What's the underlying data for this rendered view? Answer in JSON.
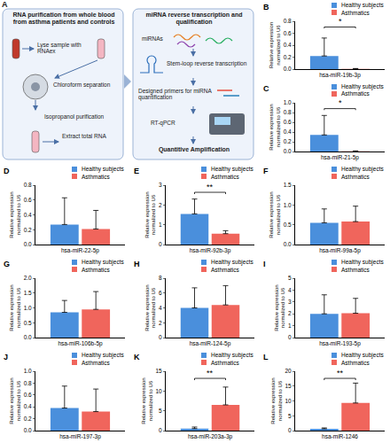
{
  "diagram": {
    "panel": "A",
    "left": {
      "title": "RNA purification from whole blood from asthma patients and controls",
      "steps": [
        "Lyse sample with RNAex",
        "Chloroform separation",
        "Isopropanol purification",
        "Extract total RNA"
      ]
    },
    "right": {
      "title": "miRNA reverse transcription and qualification",
      "steps": [
        "miRNAs",
        "Stem-loop reverse transcription",
        "Designed primers for miRNA quantification",
        "RT-qPCR",
        "Quantitive Amplification"
      ]
    }
  },
  "chart_data": [
    {
      "type": "bar",
      "panel": "B",
      "ylabel": "Relative expression normalized to U6",
      "categories": [
        "hsa-miR-19b-3p"
      ],
      "series": [
        {
          "name": "Healthy subjects",
          "color": "#4a8fdc",
          "values": [
            0.22
          ],
          "error": [
            0.3
          ]
        },
        {
          "name": "Asthmatics",
          "color": "#f0655c",
          "values": [
            0.005
          ],
          "error": [
            0.005
          ]
        }
      ],
      "ylim": [
        0,
        0.8
      ],
      "yticks": [
        {
          "value": 0,
          "label": "0.0"
        },
        0.2,
        0.4,
        0.6,
        0.8
      ],
      "grid": false,
      "annotations": [
        "*"
      ]
    },
    {
      "type": "bar",
      "panel": "C",
      "ylabel": "Relative expression normalized to U6",
      "categories": [
        "hsa-miR-21-5p"
      ],
      "series": [
        {
          "name": "Healthy subjects",
          "color": "#4a8fdc",
          "values": [
            0.34
          ],
          "error": [
            0.4
          ]
        },
        {
          "name": "Asthmatics",
          "color": "#f0655c",
          "values": [
            0.006
          ],
          "error": [
            0.006
          ]
        }
      ],
      "ylim": [
        0,
        1
      ],
      "yticks": [
        {
          "value": 0,
          "label": "0.0"
        },
        0.2,
        0.4,
        0.6,
        0.8,
        {
          "value": 1,
          "label": "1.0"
        }
      ],
      "grid": false,
      "annotations": [
        "*"
      ]
    },
    {
      "type": "bar",
      "panel": "D",
      "ylabel": "Relative expression normalized to U6",
      "categories": [
        "hsa-miR-22-5p"
      ],
      "series": [
        {
          "name": "Healthy subjects",
          "color": "#4a8fdc",
          "values": [
            0.27
          ],
          "error": [
            0.36
          ]
        },
        {
          "name": "Asthmatics",
          "color": "#f0655c",
          "values": [
            0.21
          ],
          "error": [
            0.25
          ]
        }
      ],
      "ylim": [
        0,
        0.8
      ],
      "yticks": [
        {
          "value": 0,
          "label": "0.0"
        },
        0.2,
        0.4,
        0.6,
        0.8
      ],
      "grid": false,
      "annotations": []
    },
    {
      "type": "bar",
      "panel": "E",
      "ylabel": "Relative expression normalized to U6",
      "categories": [
        "hsa-miR-92b-3p"
      ],
      "series": [
        {
          "name": "Healthy subjects",
          "color": "#4a8fdc",
          "values": [
            1.55
          ],
          "error": [
            0.75
          ]
        },
        {
          "name": "Asthmatics",
          "color": "#f0655c",
          "values": [
            0.55
          ],
          "error": [
            0.15
          ]
        }
      ],
      "ylim": [
        0,
        3
      ],
      "yticks": [
        0,
        1,
        2,
        3
      ],
      "grid": false,
      "annotations": [
        "**"
      ]
    },
    {
      "type": "bar",
      "panel": "F",
      "ylabel": "Relative expression normalized to U6",
      "categories": [
        "hsa-miR-99a-5p"
      ],
      "series": [
        {
          "name": "Healthy subjects",
          "color": "#4a8fdc",
          "values": [
            0.55
          ],
          "error": [
            0.35
          ]
        },
        {
          "name": "Asthmatics",
          "color": "#f0655c",
          "values": [
            0.58
          ],
          "error": [
            0.39
          ]
        }
      ],
      "ylim": [
        0,
        1.5
      ],
      "yticks": [
        {
          "value": 0,
          "label": "0.0"
        },
        0.5,
        {
          "value": 1,
          "label": "1.0"
        },
        1.5
      ],
      "grid": false,
      "annotations": []
    },
    {
      "type": "bar",
      "panel": "G",
      "ylabel": "Relative expression normalized to U6",
      "categories": [
        "hsa-miR-106b-5p"
      ],
      "series": [
        {
          "name": "Healthy subjects",
          "color": "#4a8fdc",
          "values": [
            0.85
          ],
          "error": [
            0.4
          ]
        },
        {
          "name": "Asthmatics",
          "color": "#f0655c",
          "values": [
            0.95
          ],
          "error": [
            0.6
          ]
        }
      ],
      "ylim": [
        0,
        2
      ],
      "yticks": [
        {
          "value": 0,
          "label": "0.0"
        },
        0.5,
        {
          "value": 1,
          "label": "1.0"
        },
        1.5,
        {
          "value": 2,
          "label": "2.0"
        }
      ],
      "grid": false,
      "annotations": []
    },
    {
      "type": "bar",
      "panel": "H",
      "ylabel": "Relative expression normalized to U6",
      "categories": [
        "hsa-miR-124-5p"
      ],
      "series": [
        {
          "name": "Healthy subjects",
          "color": "#4a8fdc",
          "values": [
            4.0
          ],
          "error": [
            2.7
          ]
        },
        {
          "name": "Asthmatics",
          "color": "#f0655c",
          "values": [
            4.4
          ],
          "error": [
            2.6
          ]
        }
      ],
      "ylim": [
        0,
        8
      ],
      "yticks": [
        0,
        2,
        4,
        6,
        8
      ],
      "grid": false,
      "annotations": []
    },
    {
      "type": "bar",
      "panel": "I",
      "ylabel": "Relative expression normalized to U6",
      "categories": [
        "hsa-miR-193-5p"
      ],
      "series": [
        {
          "name": "Healthy subjects",
          "color": "#4a8fdc",
          "values": [
            2.0
          ],
          "error": [
            1.6
          ]
        },
        {
          "name": "Asthmatics",
          "color": "#f0655c",
          "values": [
            2.05
          ],
          "error": [
            1.25
          ]
        }
      ],
      "ylim": [
        0,
        5
      ],
      "yticks": [
        0,
        1,
        2,
        3,
        4,
        5
      ],
      "grid": false,
      "annotations": []
    },
    {
      "type": "bar",
      "panel": "J",
      "ylabel": "Relative expression normalized to U6",
      "categories": [
        "hsa-miR-197-3p"
      ],
      "series": [
        {
          "name": "Healthy subjects",
          "color": "#4a8fdc",
          "values": [
            0.38
          ],
          "error": [
            0.37
          ]
        },
        {
          "name": "Asthmatics",
          "color": "#f0655c",
          "values": [
            0.32
          ],
          "error": [
            0.38
          ]
        }
      ],
      "ylim": [
        0,
        1
      ],
      "yticks": [
        {
          "value": 0,
          "label": "0.0"
        },
        0.2,
        0.4,
        0.6,
        0.8,
        {
          "value": 1,
          "label": "1.0"
        }
      ],
      "grid": false,
      "annotations": []
    },
    {
      "type": "bar",
      "panel": "K",
      "ylabel": "Relative expression normalized to U6",
      "categories": [
        "hsa-miR-203a-3p"
      ],
      "series": [
        {
          "name": "Healthy subjects",
          "color": "#4a8fdc",
          "values": [
            0.5
          ],
          "error": [
            0.4
          ]
        },
        {
          "name": "Asthmatics",
          "color": "#f0655c",
          "values": [
            6.5
          ],
          "error": [
            4.5
          ]
        }
      ],
      "ylim": [
        0,
        15
      ],
      "yticks": [
        0,
        5,
        10,
        15
      ],
      "grid": false,
      "annotations": [
        "**"
      ]
    },
    {
      "type": "bar",
      "panel": "L",
      "ylabel": "Relative expression normalized to U6",
      "categories": [
        "hsa-miR-1246"
      ],
      "series": [
        {
          "name": "Healthy subjects",
          "color": "#4a8fdc",
          "values": [
            0.6
          ],
          "error": [
            0.3
          ]
        },
        {
          "name": "Asthmatics",
          "color": "#f0655c",
          "values": [
            9.3
          ],
          "error": [
            6.7
          ]
        }
      ],
      "ylim": [
        0,
        20
      ],
      "yticks": [
        0,
        5,
        10,
        15,
        20
      ],
      "grid": false,
      "annotations": [
        "**"
      ]
    }
  ]
}
